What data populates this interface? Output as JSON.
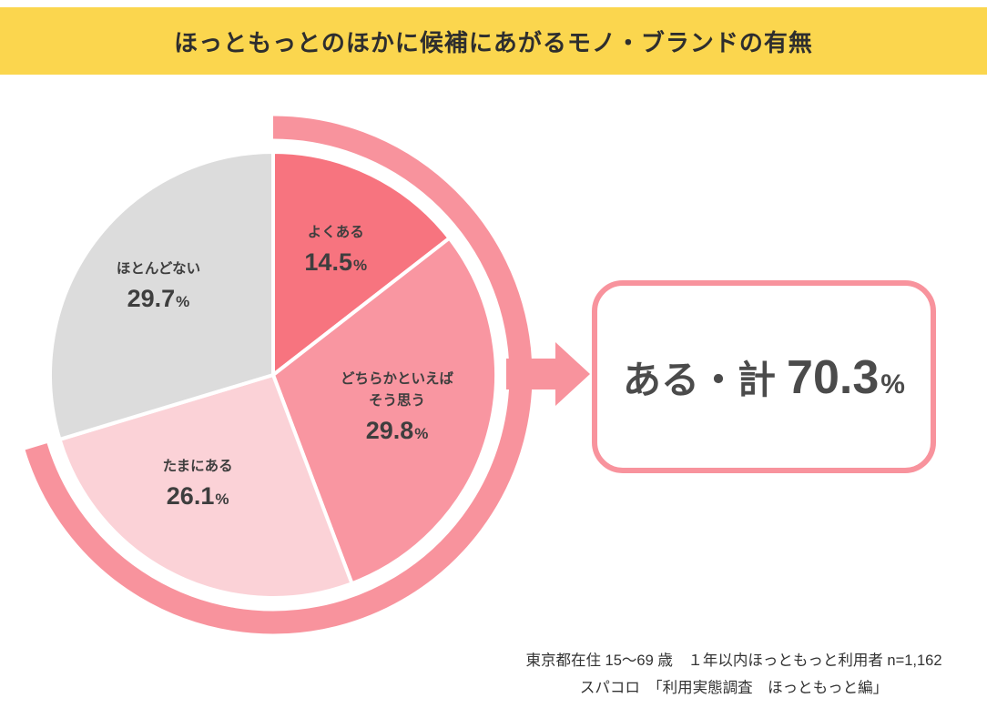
{
  "header": {
    "title": "ほっともっとのほかに候補にあがるモノ・ブランドの有無"
  },
  "colors": {
    "banner_bg": "#FBD64E",
    "accent_pink": "#F8939D",
    "text_dark": "#3E3E3E",
    "summary_text": "#4B4B4B"
  },
  "chart_data": {
    "type": "pie",
    "title": "ほっともっとのほかに候補にあがるモノ・ブランドの有無",
    "unit": "%",
    "start_angle": "top",
    "direction": "clockwise",
    "slices": [
      {
        "label": "よくある",
        "label_lines": [
          "よくある"
        ],
        "value": 14.5,
        "color": "#F7747F"
      },
      {
        "label": "どちらかといえばそう思う",
        "label_lines": [
          "どちらかといえば",
          "そう思う"
        ],
        "value": 29.8,
        "color": "#F996A1"
      },
      {
        "label": "たまにある",
        "label_lines": [
          "たまにある"
        ],
        "value": 26.1,
        "color": "#FBD2D7"
      },
      {
        "label": "ほとんどない",
        "label_lines": [
          "ほとんどない"
        ],
        "value": 29.7,
        "color": "#DCDCDC"
      }
    ],
    "highlight": {
      "label": "ある・計",
      "value": 70.3,
      "slice_indexes": [
        0,
        1,
        2
      ],
      "color": "#F8939D"
    }
  },
  "summary_box": {
    "label": "ある・計",
    "value": "70.3",
    "unit": "%"
  },
  "footer": {
    "line1": "東京都在住 15〜69 歳　１年以内ほっともっと利用者  n=1,162",
    "line2": "スパコロ　「利用実態調査　ほっともっと編」"
  }
}
